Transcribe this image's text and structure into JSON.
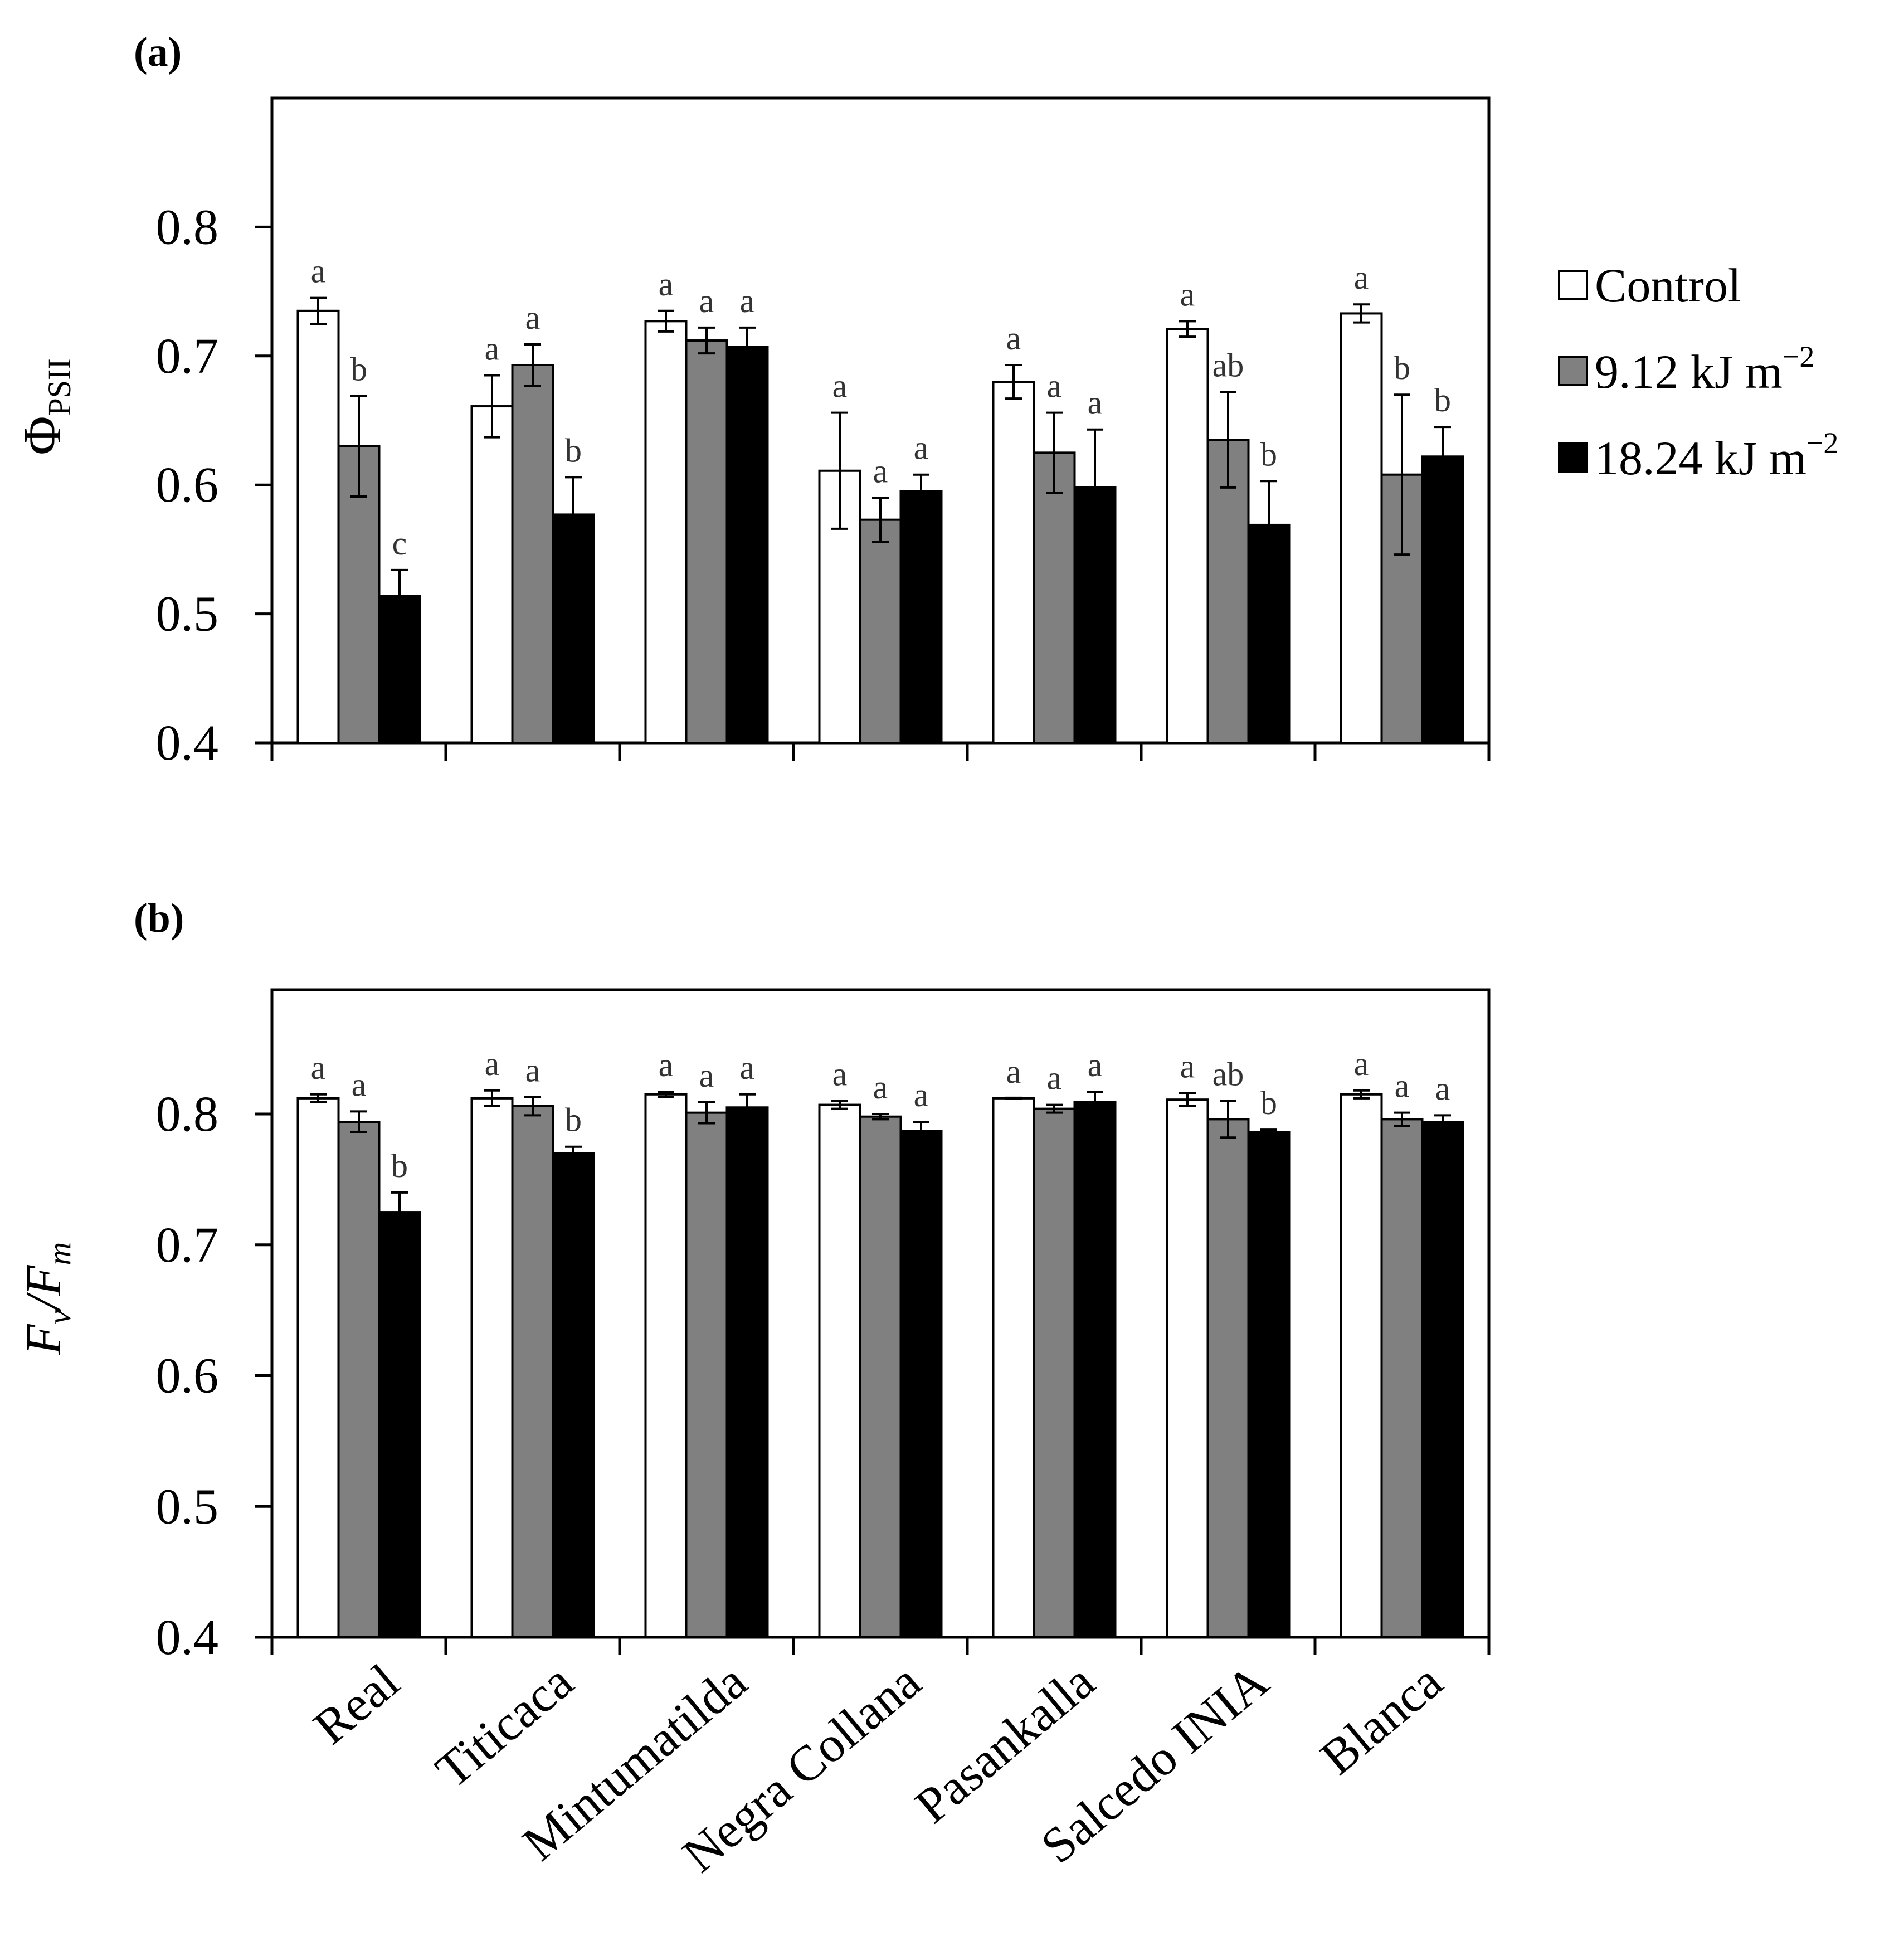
{
  "colors": {
    "control": "#ffffff",
    "mid": "#808080",
    "high": "#000000",
    "axis": "#000000"
  },
  "legend": {
    "items": [
      {
        "label": "Control",
        "color": "#ffffff"
      },
      {
        "label": "9.12 kJ m",
        "sup": "−2",
        "color": "#808080"
      },
      {
        "label": "18.24 kJ m",
        "sup": "−2",
        "color": "#000000"
      }
    ]
  },
  "chart_data": [
    {
      "panel": "(a)",
      "type": "bar",
      "ylabel_main": "Φ",
      "ylabel_sub": "PSII",
      "ylim": [
        0.4,
        0.9
      ],
      "yticks": [
        "0.4",
        "0.5",
        "0.6",
        "0.7",
        "0.8"
      ],
      "categories": [
        "Real",
        "Titicaca",
        "Mintumatilda",
        "Negra Collana",
        "Pasankalla",
        "Salcedo INIA",
        "Blanca"
      ],
      "series": [
        {
          "name": "Control",
          "values": [
            0.735,
            0.661,
            0.727,
            0.611,
            0.68,
            0.721,
            0.733
          ],
          "errors": [
            0.01,
            0.024,
            0.008,
            0.045,
            0.013,
            0.006,
            0.007
          ],
          "letters": [
            "a",
            "a",
            "a",
            "a",
            "a",
            "a",
            "a"
          ]
        },
        {
          "name": "9.12 kJ m−2",
          "values": [
            0.63,
            0.693,
            0.712,
            0.573,
            0.625,
            0.635,
            0.608
          ],
          "errors": [
            0.039,
            0.016,
            0.01,
            0.017,
            0.031,
            0.037,
            0.062
          ],
          "letters": [
            "b",
            "a",
            "a",
            "a",
            "a",
            "ab",
            "b"
          ]
        },
        {
          "name": "18.24 kJ m−2",
          "values": [
            0.514,
            0.577,
            0.707,
            0.595,
            0.598,
            0.569,
            0.622
          ],
          "errors": [
            0.02,
            0.029,
            0.015,
            0.013,
            0.045,
            0.034,
            0.023
          ],
          "letters": [
            "c",
            "b",
            "a",
            "a",
            "a",
            "b",
            "b"
          ]
        }
      ]
    },
    {
      "panel": "(b)",
      "type": "bar",
      "ylabel_main": "F",
      "ylabel_sub": "v",
      "ylabel_rest": "/F",
      "ylabel_sub2": "m",
      "ylim": [
        0.4,
        0.895
      ],
      "yticks": [
        "0.4",
        "0.5",
        "0.6",
        "0.7",
        "0.8"
      ],
      "categories": [
        "Real",
        "Titicaca",
        "Mintumatilda",
        "Negra Collana",
        "Pasankalla",
        "Salcedo INIA",
        "Blanca"
      ],
      "series": [
        {
          "name": "Control",
          "values": [
            0.812,
            0.812,
            0.815,
            0.807,
            0.812,
            0.811,
            0.815
          ],
          "errors": [
            0.003,
            0.006,
            0.002,
            0.003,
            0.0,
            0.005,
            0.003
          ],
          "letters": [
            "a",
            "a",
            "a",
            "a",
            "a",
            "a",
            "a"
          ]
        },
        {
          "name": "9.12 kJ m−2",
          "values": [
            0.794,
            0.806,
            0.801,
            0.798,
            0.804,
            0.796,
            0.796
          ],
          "errors": [
            0.008,
            0.007,
            0.008,
            0.002,
            0.003,
            0.014,
            0.005
          ],
          "letters": [
            "a",
            "a",
            "a",
            "a",
            "a",
            "ab",
            "a"
          ]
        },
        {
          "name": "18.24 kJ m−2",
          "values": [
            0.725,
            0.77,
            0.805,
            0.787,
            0.809,
            0.786,
            0.794
          ],
          "errors": [
            0.015,
            0.005,
            0.01,
            0.007,
            0.008,
            0.002,
            0.005
          ],
          "letters": [
            "b",
            "b",
            "a",
            "a",
            "a",
            "b",
            "a"
          ]
        }
      ]
    }
  ]
}
